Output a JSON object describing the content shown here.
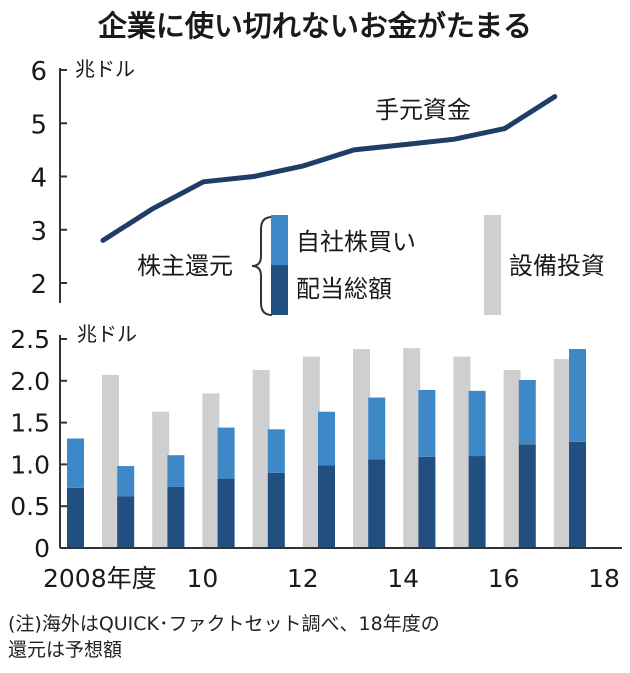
{
  "title": "企業に使い切れないお金がたまる",
  "footnote": {
    "line1": "(注)海外はQUICK･ファクトセット調べ、18年度の",
    "line2": "還元は予想額"
  },
  "colors": {
    "line": "#1f3d66",
    "buyback": "#3f88c8",
    "dividend": "#214f80",
    "capex": "#cfcfcf",
    "axis": "#333333",
    "text": "#1a1a1a"
  },
  "chart_data": [
    {
      "type": "line",
      "unit": "兆ドル",
      "ylim": [
        2,
        6
      ],
      "yticks": [
        "2",
        "3",
        "4",
        "5",
        "6"
      ],
      "x": [
        2008,
        2009,
        2010,
        2011,
        2012,
        2013,
        2014,
        2015,
        2016,
        2017
      ],
      "series": [
        {
          "name": "手元資金",
          "values": [
            2.8,
            3.4,
            3.9,
            4.0,
            4.2,
            4.5,
            4.6,
            4.7,
            4.9,
            5.5
          ]
        }
      ]
    },
    {
      "type": "bar",
      "unit": "兆ドル",
      "ylim": [
        0,
        2.5
      ],
      "yticks": [
        "0",
        "0.5",
        "1.0",
        "1.5",
        "2.0",
        "2.5"
      ],
      "categories": [
        "2008",
        "2009",
        "2010",
        "2011",
        "2012",
        "2013",
        "2014",
        "2015",
        "2016",
        "2017",
        "2018"
      ],
      "xtick_labels": [
        "2008年度",
        "",
        "10",
        "",
        "12",
        "",
        "14",
        "",
        "16",
        "",
        "18"
      ],
      "group_label": "株主還元",
      "series": [
        {
          "name": "配当総額",
          "values": [
            0.72,
            0.62,
            0.73,
            0.83,
            0.9,
            0.99,
            1.06,
            1.09,
            1.1,
            1.24,
            1.27
          ]
        },
        {
          "name": "自社株買い",
          "values": [
            0.59,
            0.36,
            0.38,
            0.61,
            0.52,
            0.64,
            0.74,
            0.8,
            0.78,
            0.77,
            1.11
          ]
        },
        {
          "name": "設備投資",
          "values": [
            2.07,
            1.63,
            1.85,
            2.13,
            2.29,
            2.38,
            2.39,
            2.29,
            2.13,
            2.26,
            null
          ]
        }
      ]
    }
  ]
}
